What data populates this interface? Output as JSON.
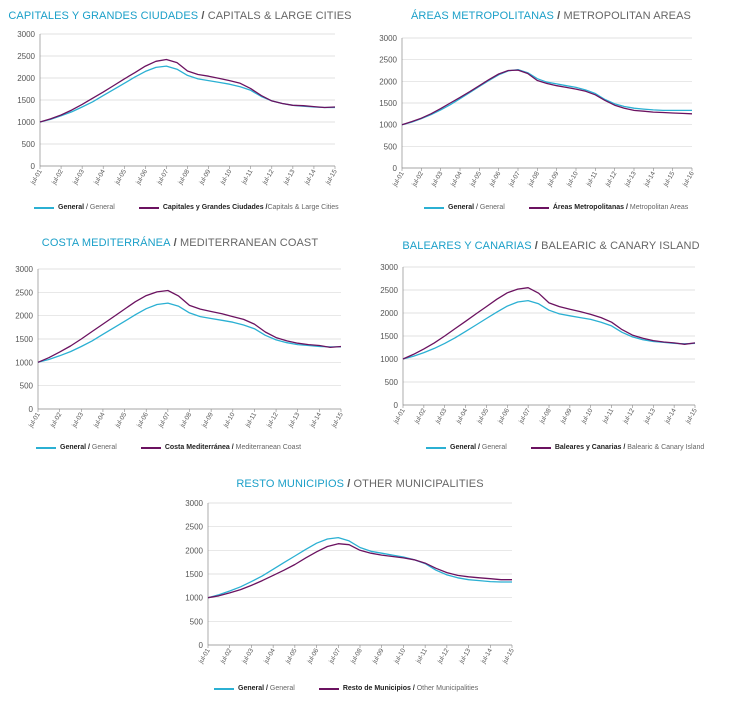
{
  "colors": {
    "general": "#2bb0d3",
    "segment": "#6b1260",
    "grid": "#d9d9d9",
    "axis": "#888888"
  },
  "chart_data": [
    {
      "type": "line",
      "title_es": "CAPITALES Y GRANDES CIUDADES",
      "title_en": "CAPITALS & LARGE CITIES",
      "ylim": [
        0,
        3000
      ],
      "yticks": [
        0,
        500,
        1000,
        1500,
        2000,
        2500,
        3000
      ],
      "x_labels": [
        "jul-01",
        "jul-02",
        "jul-03",
        "jul-04",
        "jul-05",
        "jul-06",
        "jul-07",
        "jul-08",
        "jul-09",
        "jul-10",
        "jul-11",
        "jul-12",
        "jul-13",
        "jul-14",
        "jul-15"
      ],
      "x": [
        2001.5,
        2002,
        2002.5,
        2003,
        2003.5,
        2004,
        2004.5,
        2005,
        2005.5,
        2006,
        2006.5,
        2007,
        2007.5,
        2008,
        2008.5,
        2009,
        2009.5,
        2010,
        2010.5,
        2011,
        2011.5,
        2012,
        2012.5,
        2013,
        2013.5,
        2014,
        2014.5,
        2015,
        2015.5
      ],
      "series": [
        {
          "name": "General",
          "legend_es": "General",
          "legend_en": "General",
          "values": [
            1000,
            1060,
            1140,
            1230,
            1340,
            1460,
            1600,
            1740,
            1880,
            2020,
            2150,
            2240,
            2270,
            2200,
            2060,
            1980,
            1940,
            1900,
            1860,
            1800,
            1720,
            1580,
            1480,
            1420,
            1380,
            1360,
            1340,
            1330,
            1330
          ]
        },
        {
          "name": "Capitales y Grandes Ciudades",
          "legend_es": "Capitales y Grandes Ciudades /",
          "legend_en": "Capitals & Large Cities",
          "values": [
            1000,
            1070,
            1160,
            1270,
            1400,
            1540,
            1680,
            1830,
            1980,
            2120,
            2270,
            2380,
            2420,
            2350,
            2160,
            2080,
            2040,
            1990,
            1940,
            1880,
            1760,
            1600,
            1480,
            1420,
            1380,
            1370,
            1350,
            1330,
            1340
          ]
        }
      ]
    },
    {
      "type": "line",
      "title_es": "ÁREAS METROPOLITANAS",
      "title_en": "METROPOLITAN AREAS",
      "ylim": [
        0,
        3000
      ],
      "yticks": [
        0,
        500,
        1000,
        1500,
        2000,
        2500,
        3000
      ],
      "x_labels": [
        "jul-01",
        "jul-02",
        "jul-03",
        "jul-04",
        "jul-05",
        "jul-06",
        "jul-07",
        "jul-08",
        "jul-09",
        "jul-10",
        "jul-11",
        "jul-12",
        "jul-13",
        "jul-14",
        "jul-15",
        "jul-16"
      ],
      "x": [
        2001.5,
        2002,
        2002.5,
        2003,
        2003.5,
        2004,
        2004.5,
        2005,
        2005.5,
        2006,
        2006.5,
        2007,
        2007.5,
        2008,
        2008.5,
        2009,
        2009.5,
        2010,
        2010.5,
        2011,
        2011.5,
        2012,
        2012.5,
        2013,
        2013.5,
        2014,
        2014.5,
        2015,
        2015.5,
        2016,
        2016.5
      ],
      "series": [
        {
          "name": "General",
          "legend_es": "General",
          "legend_en": "General",
          "values": [
            1000,
            1060,
            1140,
            1230,
            1340,
            1460,
            1600,
            1740,
            1880,
            2020,
            2150,
            2240,
            2270,
            2200,
            2060,
            1980,
            1940,
            1900,
            1860,
            1800,
            1720,
            1580,
            1480,
            1420,
            1380,
            1360,
            1340,
            1330,
            1330,
            1330,
            1330
          ]
        },
        {
          "name": "Áreas Metropolitanas",
          "legend_es": "Áreas Metropolitanas /",
          "legend_en": "Metropolitan Areas",
          "values": [
            1000,
            1070,
            1150,
            1250,
            1370,
            1500,
            1630,
            1760,
            1900,
            2040,
            2170,
            2250,
            2260,
            2180,
            2020,
            1950,
            1900,
            1860,
            1820,
            1770,
            1690,
            1560,
            1450,
            1380,
            1330,
            1310,
            1290,
            1280,
            1270,
            1260,
            1250
          ]
        }
      ]
    },
    {
      "type": "line",
      "title_es": "COSTA MEDITERRÁNEA",
      "title_en": "MEDITERRANEAN COAST",
      "ylim": [
        0,
        3000
      ],
      "yticks": [
        0,
        500,
        1000,
        1500,
        2000,
        2500,
        3000
      ],
      "x_labels": [
        "jul-01",
        "jul-02",
        "jul-03",
        "jul-04",
        "jul-05",
        "jul-06",
        "jul-07",
        "jul-08",
        "jul-09",
        "jul-10",
        "jul-11",
        "jul-12",
        "jul-13",
        "jul-14",
        "jul-15"
      ],
      "x": [
        2001.5,
        2002,
        2002.5,
        2003,
        2003.5,
        2004,
        2004.5,
        2005,
        2005.5,
        2006,
        2006.5,
        2007,
        2007.5,
        2008,
        2008.5,
        2009,
        2009.5,
        2010,
        2010.5,
        2011,
        2011.5,
        2012,
        2012.5,
        2013,
        2013.5,
        2014,
        2014.5,
        2015,
        2015.5
      ],
      "series": [
        {
          "name": "General",
          "legend_es": "General /",
          "legend_en": "General",
          "values": [
            1000,
            1060,
            1140,
            1230,
            1340,
            1460,
            1600,
            1740,
            1880,
            2020,
            2150,
            2240,
            2270,
            2200,
            2060,
            1980,
            1940,
            1900,
            1860,
            1800,
            1720,
            1580,
            1480,
            1420,
            1380,
            1360,
            1340,
            1330,
            1330
          ]
        },
        {
          "name": "Costa Mediterránea",
          "legend_es": "Costa Mediterránea /",
          "legend_en": "Mediterranean Coast",
          "values": [
            1000,
            1100,
            1220,
            1350,
            1500,
            1660,
            1820,
            1980,
            2140,
            2300,
            2430,
            2510,
            2540,
            2420,
            2220,
            2140,
            2090,
            2040,
            1980,
            1920,
            1820,
            1650,
            1530,
            1460,
            1410,
            1380,
            1360,
            1320,
            1340
          ]
        }
      ]
    },
    {
      "type": "line",
      "title_es": "BALEARES Y CANARIAS",
      "title_en": "BALEARIC & CANARY ISLAND",
      "ylim": [
        0,
        3000
      ],
      "yticks": [
        0,
        500,
        1000,
        1500,
        2000,
        2500,
        3000
      ],
      "x_labels": [
        "jul-01",
        "jul-02",
        "jul-03",
        "jul-04",
        "jul-05",
        "jul-06",
        "jul-07",
        "jul-08",
        "jul-09",
        "jul-10",
        "jul-11",
        "jul-12",
        "jul-13",
        "jul-14",
        "jul-15"
      ],
      "x": [
        2001.5,
        2002,
        2002.5,
        2003,
        2003.5,
        2004,
        2004.5,
        2005,
        2005.5,
        2006,
        2006.5,
        2007,
        2007.5,
        2008,
        2008.5,
        2009,
        2009.5,
        2010,
        2010.5,
        2011,
        2011.5,
        2012,
        2012.5,
        2013,
        2013.5,
        2014,
        2014.5,
        2015,
        2015.5
      ],
      "series": [
        {
          "name": "General",
          "legend_es": "General /",
          "legend_en": "General",
          "values": [
            1000,
            1060,
            1140,
            1230,
            1340,
            1460,
            1600,
            1740,
            1880,
            2020,
            2150,
            2240,
            2270,
            2200,
            2060,
            1980,
            1940,
            1900,
            1860,
            1800,
            1720,
            1580,
            1480,
            1420,
            1380,
            1360,
            1340,
            1330,
            1340
          ]
        },
        {
          "name": "Baleares y Canarias",
          "legend_es": "Baleares y Canarias /",
          "legend_en": "Balearic & Canary Island",
          "values": [
            1000,
            1100,
            1220,
            1350,
            1500,
            1660,
            1820,
            1980,
            2140,
            2300,
            2440,
            2520,
            2550,
            2430,
            2220,
            2140,
            2080,
            2030,
            1970,
            1900,
            1800,
            1640,
            1520,
            1450,
            1400,
            1370,
            1350,
            1320,
            1350
          ]
        }
      ]
    },
    {
      "type": "line",
      "title_es": "RESTO MUNICIPIOS",
      "title_en": "OTHER MUNICIPALITIES",
      "ylim": [
        0,
        3000
      ],
      "yticks": [
        0,
        500,
        1000,
        1500,
        2000,
        2500,
        3000
      ],
      "x_labels": [
        "jul-01",
        "jul-02",
        "jul-03",
        "jul-04",
        "jul-05",
        "jul-06",
        "jul-07",
        "jul-08",
        "jul-09",
        "jul-10",
        "jul-11",
        "jul-12",
        "jul-13",
        "jul-14",
        "jul-15"
      ],
      "x": [
        2001.5,
        2002,
        2002.5,
        2003,
        2003.5,
        2004,
        2004.5,
        2005,
        2005.5,
        2006,
        2006.5,
        2007,
        2007.5,
        2008,
        2008.5,
        2009,
        2009.5,
        2010,
        2010.5,
        2011,
        2011.5,
        2012,
        2012.5,
        2013,
        2013.5,
        2014,
        2014.5,
        2015,
        2015.5
      ],
      "series": [
        {
          "name": "General",
          "legend_es": "General /",
          "legend_en": "General",
          "values": [
            1000,
            1060,
            1140,
            1230,
            1340,
            1460,
            1600,
            1740,
            1880,
            2020,
            2150,
            2240,
            2270,
            2200,
            2060,
            1980,
            1940,
            1900,
            1860,
            1800,
            1720,
            1580,
            1480,
            1420,
            1380,
            1360,
            1340,
            1330,
            1330
          ]
        },
        {
          "name": "Resto de Municipios",
          "legend_es": "Resto de Municipios /",
          "legend_en": "Other Municipalities",
          "values": [
            1000,
            1040,
            1100,
            1170,
            1260,
            1360,
            1470,
            1580,
            1700,
            1840,
            1970,
            2080,
            2140,
            2120,
            2000,
            1940,
            1900,
            1870,
            1840,
            1800,
            1730,
            1620,
            1530,
            1470,
            1440,
            1420,
            1400,
            1380,
            1380
          ]
        }
      ]
    }
  ]
}
